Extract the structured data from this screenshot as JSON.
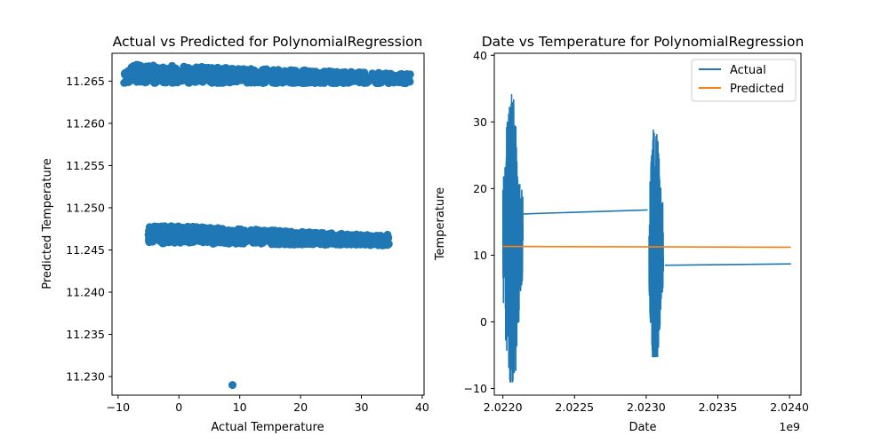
{
  "chart_data": [
    {
      "type": "scatter",
      "title": "Actual vs Predicted for PolynomialRegression",
      "xlabel": "Actual Temperature",
      "ylabel": "Predicted Temperature",
      "xlim": [
        -11,
        40.3
      ],
      "ylim": [
        11.2278,
        11.2683
      ],
      "xticks": [
        -10,
        0,
        10,
        20,
        30,
        40
      ],
      "yticks": [
        11.23,
        11.235,
        11.24,
        11.245,
        11.25,
        11.255,
        11.26,
        11.265
      ],
      "grid": false,
      "color": "#1f77b4",
      "bands": [
        {
          "x": [
            -9.0,
            38.0
          ],
          "y": [
            11.2648,
            11.267
          ],
          "tilt": -0.0006
        },
        {
          "x": [
            -5.0,
            34.5
          ],
          "y": [
            11.2458,
            11.248
          ],
          "tilt": -0.0008
        }
      ],
      "points": [
        {
          "x": 8.8,
          "y": 11.229
        },
        {
          "x": -9.0,
          "y": 11.2648
        },
        {
          "x": 38.0,
          "y": 11.2658
        },
        {
          "x": -4.8,
          "y": 11.2477
        },
        {
          "x": 34.3,
          "y": 11.2468
        },
        {
          "x": -2.5,
          "y": 11.2459
        }
      ]
    },
    {
      "type": "line",
      "title": "Date vs Temperature for PolynomialRegression",
      "xlabel": "Date",
      "ylabel": "Temperature",
      "x_offset_text": "1e9",
      "xlim": [
        2.02194,
        2.02408
      ],
      "ylim": [
        -11.0,
        40.3
      ],
      "xticks": [
        "2.0220",
        "2.0225",
        "2.0230",
        "2.0235",
        "2.0240"
      ],
      "yticks": [
        -10,
        0,
        10,
        20,
        30,
        40
      ],
      "grid": false,
      "legend": "top-right",
      "series": [
        {
          "name": "Actual",
          "color": "#1f77b4",
          "clusters": [
            {
              "x": [
                2.022,
                2.02214
              ],
              "y": [
                -9.0,
                37.8
              ]
            },
            {
              "x": [
                2.02302,
                2.02312
              ],
              "y": [
                -5.2,
                34.2
              ]
            }
          ],
          "x": [
            2.02214,
            2.02301,
            2.02313,
            2.02401
          ],
          "y": [
            16.2,
            16.8,
            8.5,
            8.7
          ]
        },
        {
          "name": "Predicted",
          "color": "#ff7f0e",
          "x": [
            2.022,
            2.02401
          ],
          "y": [
            11.3,
            11.2
          ]
        }
      ]
    }
  ]
}
